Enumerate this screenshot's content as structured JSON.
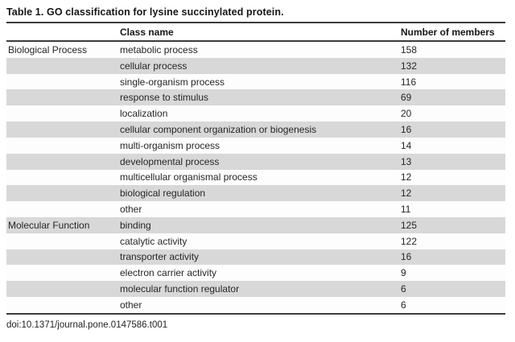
{
  "title": "Table 1. GO classification for lysine succinylated protein.",
  "header": {
    "category": "",
    "class_name": "Class name",
    "members": "Number of members"
  },
  "rows": [
    {
      "category": "Biological Process",
      "class_name": "metabolic process",
      "members": "158"
    },
    {
      "category": "",
      "class_name": "cellular process",
      "members": "132"
    },
    {
      "category": "",
      "class_name": "single-organism process",
      "members": "116"
    },
    {
      "category": "",
      "class_name": "response to stimulus",
      "members": "69"
    },
    {
      "category": "",
      "class_name": "localization",
      "members": "20"
    },
    {
      "category": "",
      "class_name": "cellular component organization or biogenesis",
      "members": "16"
    },
    {
      "category": "",
      "class_name": "multi-organism process",
      "members": "14"
    },
    {
      "category": "",
      "class_name": "developmental process",
      "members": "13"
    },
    {
      "category": "",
      "class_name": "multicellular organismal process",
      "members": "12"
    },
    {
      "category": "",
      "class_name": "biological regulation",
      "members": "12"
    },
    {
      "category": "",
      "class_name": "other",
      "members": "11"
    },
    {
      "category": "Molecular Function",
      "class_name": "binding",
      "members": "125"
    },
    {
      "category": "",
      "class_name": "catalytic activity",
      "members": "122"
    },
    {
      "category": "",
      "class_name": "transporter activity",
      "members": "16"
    },
    {
      "category": "",
      "class_name": "electron carrier activity",
      "members": "9"
    },
    {
      "category": "",
      "class_name": "molecular function regulator",
      "members": "6"
    },
    {
      "category": "",
      "class_name": "other",
      "members": "6"
    }
  ],
  "footer": {
    "doi": "doi:10.1371/journal.pone.0147586.t001"
  },
  "colors": {
    "stripe": "#d8d8d8",
    "rowbg": "#fdfdfd",
    "rule": "#3c3c3c",
    "text": "#1e1e1e"
  }
}
